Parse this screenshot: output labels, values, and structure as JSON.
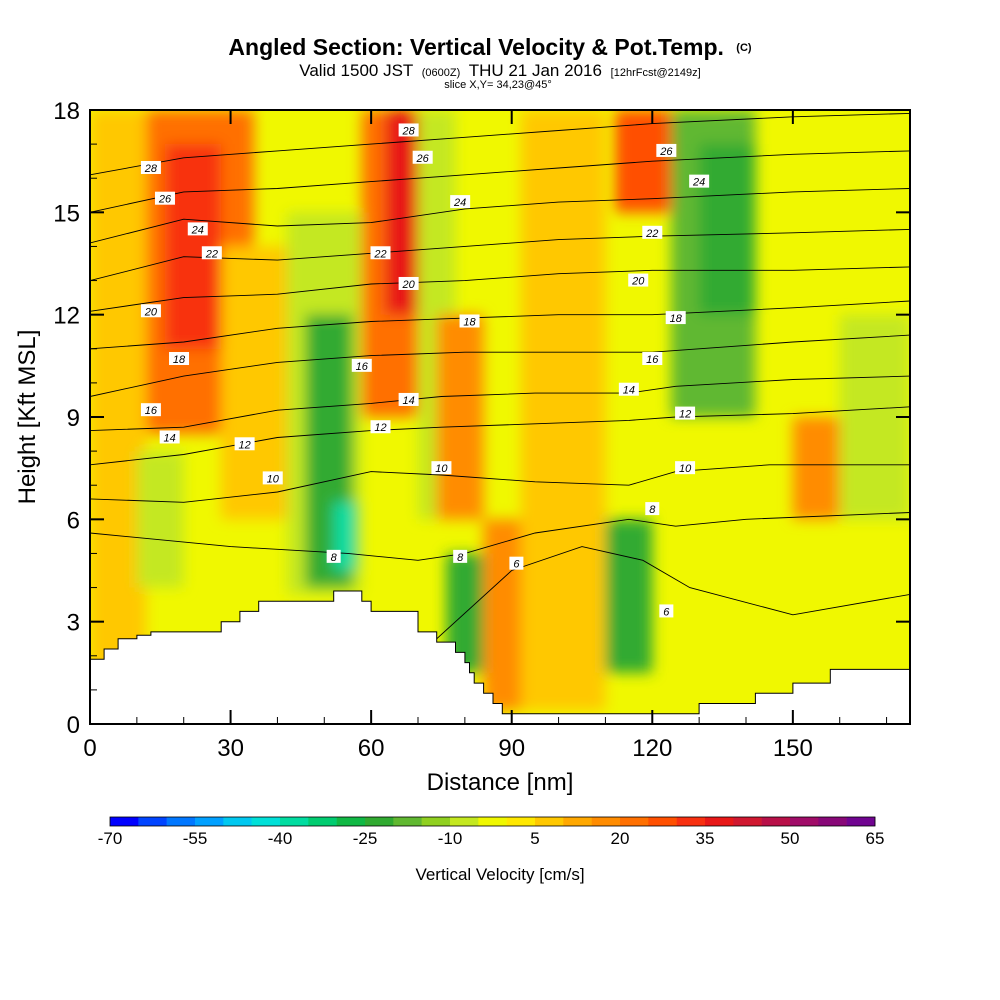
{
  "chart_data": {
    "type": "heatmap",
    "title": "Angled Section: Vertical Velocity & Pot.Temp.",
    "title_suffix": "(C)",
    "subtitle_parts": [
      "Valid 1500 JST",
      "(0600Z)",
      "THU 21 Jan 2016",
      "[12hrFcst@2149z]"
    ],
    "slice_label": "slice X,Y= 34,23@45°",
    "xlabel": "Distance [nm]",
    "ylabel": "Height [Kft MSL]",
    "xlim": [
      0,
      175
    ],
    "ylim": [
      0,
      18
    ],
    "x_ticks": [
      "0",
      "30",
      "60",
      "90",
      "120",
      "150"
    ],
    "x_tick_values": [
      0,
      30,
      60,
      90,
      120,
      150
    ],
    "y_ticks": [
      "0",
      "3",
      "6",
      "9",
      "12",
      "15",
      "18"
    ],
    "y_tick_values": [
      0,
      3,
      6,
      9,
      12,
      15,
      18
    ],
    "colorbar": {
      "title": "Vertical Velocity [cm/s]",
      "labels": [
        "-70",
        "-55",
        "-40",
        "-25",
        "-10",
        "5",
        "20",
        "35",
        "50",
        "65"
      ],
      "min": -70,
      "max": 65,
      "step": 5,
      "colors": [
        "#0000ff",
        "#0044ff",
        "#0077ff",
        "#00a0ff",
        "#00c8f0",
        "#00e0d8",
        "#00dca0",
        "#00cc70",
        "#10b844",
        "#30aa30",
        "#60b830",
        "#90d020",
        "#c4e820",
        "#f0f800",
        "#ffe800",
        "#ffc800",
        "#ffa800",
        "#ff8c00",
        "#ff7000",
        "#ff5000",
        "#f83010",
        "#e81818",
        "#d01830",
        "#b81048",
        "#a00c68",
        "#880878",
        "#700490"
      ]
    },
    "vertical_velocity_cells_cm_s": [
      {
        "x0": 0,
        "x1": 12,
        "y0": 0,
        "y1": 18,
        "v": 5
      },
      {
        "x0": 12,
        "x1": 35,
        "y0": 8.5,
        "y1": 18,
        "v": 18
      },
      {
        "x0": 16,
        "x1": 28,
        "y0": 11,
        "y1": 17,
        "v": 30
      },
      {
        "x0": 10,
        "x1": 20,
        "y0": 4,
        "y1": 8,
        "v": -8
      },
      {
        "x0": 28,
        "x1": 45,
        "y0": 6,
        "y1": 14,
        "v": 5
      },
      {
        "x0": 42,
        "x1": 58,
        "y0": 3.8,
        "y1": 15,
        "v": -12
      },
      {
        "x0": 46,
        "x1": 56,
        "y0": 4,
        "y1": 12,
        "v": -25
      },
      {
        "x0": 52,
        "x1": 57,
        "y0": 4.5,
        "y1": 6.5,
        "v": -40
      },
      {
        "x0": 58,
        "x1": 72,
        "y0": 9,
        "y1": 18,
        "v": 20
      },
      {
        "x0": 63,
        "x1": 70,
        "y0": 12,
        "y1": 18,
        "v": 35
      },
      {
        "x0": 70,
        "x1": 78,
        "y0": 6,
        "y1": 18,
        "v": -8
      },
      {
        "x0": 74,
        "x1": 84,
        "y0": 6,
        "y1": 12,
        "v": 15
      },
      {
        "x0": 76,
        "x1": 84,
        "y0": 1.5,
        "y1": 5,
        "v": -25
      },
      {
        "x0": 84,
        "x1": 92,
        "y0": 0.4,
        "y1": 6,
        "v": 15
      },
      {
        "x0": 92,
        "x1": 110,
        "y0": 0.4,
        "y1": 18,
        "v": 5
      },
      {
        "x0": 110,
        "x1": 120,
        "y0": 1.5,
        "y1": 6,
        "v": -25
      },
      {
        "x0": 112,
        "x1": 124,
        "y0": 15,
        "y1": 18,
        "v": 25
      },
      {
        "x0": 124,
        "x1": 142,
        "y0": 9,
        "y1": 18,
        "v": -18
      },
      {
        "x0": 130,
        "x1": 142,
        "y0": 12,
        "y1": 17,
        "v": -25
      },
      {
        "x0": 150,
        "x1": 160,
        "y0": 6,
        "y1": 9,
        "v": 15
      },
      {
        "x0": 160,
        "x1": 175,
        "y0": 6,
        "y1": 12,
        "v": -10
      }
    ],
    "theta_contours_C": [
      {
        "label": "6",
        "points": [
          [
            48,
            1.2
          ],
          [
            70,
            2.0
          ],
          [
            90,
            4.5
          ],
          [
            105,
            5.2
          ],
          [
            118,
            4.8
          ],
          [
            128,
            4.0
          ],
          [
            150,
            3.2
          ],
          [
            175,
            3.8
          ]
        ]
      },
      {
        "label": "8",
        "points": [
          [
            0,
            5.6
          ],
          [
            30,
            5.2
          ],
          [
            55,
            5.0
          ],
          [
            70,
            4.8
          ],
          [
            80,
            5.0
          ],
          [
            95,
            5.6
          ],
          [
            115,
            6.0
          ],
          [
            125,
            5.8
          ],
          [
            140,
            6.0
          ],
          [
            175,
            6.2
          ]
        ]
      },
      {
        "label": "10",
        "points": [
          [
            0,
            6.6
          ],
          [
            20,
            6.5
          ],
          [
            40,
            6.8
          ],
          [
            60,
            7.4
          ],
          [
            75,
            7.3
          ],
          [
            95,
            7.1
          ],
          [
            115,
            7.0
          ],
          [
            125,
            7.4
          ],
          [
            145,
            7.6
          ],
          [
            175,
            7.6
          ]
        ]
      },
      {
        "label": "12",
        "points": [
          [
            0,
            7.6
          ],
          [
            20,
            7.9
          ],
          [
            40,
            8.4
          ],
          [
            60,
            8.6
          ],
          [
            75,
            8.7
          ],
          [
            95,
            8.8
          ],
          [
            115,
            8.9
          ],
          [
            125,
            9.0
          ],
          [
            150,
            9.1
          ],
          [
            175,
            9.3
          ]
        ]
      },
      {
        "label": "14",
        "points": [
          [
            0,
            8.6
          ],
          [
            20,
            8.7
          ],
          [
            40,
            9.2
          ],
          [
            60,
            9.4
          ],
          [
            75,
            9.6
          ],
          [
            95,
            9.7
          ],
          [
            115,
            9.7
          ],
          [
            125,
            9.9
          ],
          [
            150,
            10.1
          ],
          [
            175,
            10.2
          ]
        ]
      },
      {
        "label": "16",
        "points": [
          [
            0,
            9.6
          ],
          [
            20,
            10.2
          ],
          [
            40,
            10.6
          ],
          [
            60,
            10.8
          ],
          [
            80,
            10.9
          ],
          [
            100,
            10.9
          ],
          [
            120,
            10.9
          ],
          [
            150,
            11.2
          ],
          [
            175,
            11.4
          ]
        ]
      },
      {
        "label": "18",
        "points": [
          [
            0,
            11.0
          ],
          [
            20,
            11.2
          ],
          [
            40,
            11.6
          ],
          [
            60,
            11.8
          ],
          [
            80,
            11.9
          ],
          [
            100,
            12.0
          ],
          [
            120,
            12.0
          ],
          [
            150,
            12.2
          ],
          [
            175,
            12.4
          ]
        ]
      },
      {
        "label": "20",
        "points": [
          [
            0,
            12.1
          ],
          [
            20,
            12.5
          ],
          [
            40,
            12.6
          ],
          [
            60,
            12.9
          ],
          [
            80,
            13.0
          ],
          [
            100,
            13.2
          ],
          [
            120,
            13.3
          ],
          [
            150,
            13.3
          ],
          [
            175,
            13.4
          ]
        ]
      },
      {
        "label": "22",
        "points": [
          [
            0,
            13.0
          ],
          [
            20,
            13.7
          ],
          [
            40,
            13.6
          ],
          [
            60,
            13.8
          ],
          [
            80,
            14.0
          ],
          [
            100,
            14.2
          ],
          [
            120,
            14.3
          ],
          [
            150,
            14.4
          ],
          [
            175,
            14.5
          ]
        ]
      },
      {
        "label": "24",
        "points": [
          [
            0,
            14.1
          ],
          [
            20,
            14.8
          ],
          [
            40,
            14.6
          ],
          [
            60,
            14.7
          ],
          [
            80,
            15.1
          ],
          [
            100,
            15.3
          ],
          [
            120,
            15.4
          ],
          [
            150,
            15.6
          ],
          [
            175,
            15.7
          ]
        ]
      },
      {
        "label": "26",
        "points": [
          [
            0,
            15.0
          ],
          [
            20,
            15.6
          ],
          [
            40,
            15.7
          ],
          [
            60,
            15.9
          ],
          [
            80,
            16.1
          ],
          [
            100,
            16.3
          ],
          [
            120,
            16.5
          ],
          [
            150,
            16.7
          ],
          [
            175,
            16.8
          ]
        ]
      },
      {
        "label": "28",
        "points": [
          [
            0,
            16.1
          ],
          [
            20,
            16.6
          ],
          [
            40,
            16.8
          ],
          [
            60,
            17.0
          ],
          [
            80,
            17.2
          ],
          [
            100,
            17.4
          ],
          [
            120,
            17.6
          ],
          [
            150,
            17.8
          ],
          [
            175,
            17.9
          ]
        ]
      }
    ],
    "contour_labels": [
      {
        "text": "28",
        "x": 13,
        "y": 16.3
      },
      {
        "text": "26",
        "x": 16,
        "y": 15.4
      },
      {
        "text": "24",
        "x": 23,
        "y": 14.5
      },
      {
        "text": "22",
        "x": 26,
        "y": 13.8
      },
      {
        "text": "20",
        "x": 13,
        "y": 12.1
      },
      {
        "text": "18",
        "x": 19,
        "y": 10.7
      },
      {
        "text": "16",
        "x": 13,
        "y": 9.2
      },
      {
        "text": "14",
        "x": 17,
        "y": 8.4
      },
      {
        "text": "12",
        "x": 33,
        "y": 8.2
      },
      {
        "text": "10",
        "x": 39,
        "y": 7.2
      },
      {
        "text": "8",
        "x": 52,
        "y": 4.9
      },
      {
        "text": "28",
        "x": 68,
        "y": 17.4
      },
      {
        "text": "26",
        "x": 71,
        "y": 16.6
      },
      {
        "text": "24",
        "x": 79,
        "y": 15.3
      },
      {
        "text": "22",
        "x": 62,
        "y": 13.8
      },
      {
        "text": "20",
        "x": 68,
        "y": 12.9
      },
      {
        "text": "18",
        "x": 81,
        "y": 11.8
      },
      {
        "text": "16",
        "x": 58,
        "y": 10.5
      },
      {
        "text": "14",
        "x": 68,
        "y": 9.5
      },
      {
        "text": "12",
        "x": 62,
        "y": 8.7
      },
      {
        "text": "10",
        "x": 75,
        "y": 7.5
      },
      {
        "text": "8",
        "x": 79,
        "y": 4.9
      },
      {
        "text": "6",
        "x": 91,
        "y": 4.7
      },
      {
        "text": "26",
        "x": 123,
        "y": 16.8
      },
      {
        "text": "24",
        "x": 130,
        "y": 15.9
      },
      {
        "text": "22",
        "x": 120,
        "y": 14.4
      },
      {
        "text": "20",
        "x": 117,
        "y": 13.0
      },
      {
        "text": "18",
        "x": 125,
        "y": 11.9
      },
      {
        "text": "16",
        "x": 120,
        "y": 10.7
      },
      {
        "text": "14",
        "x": 115,
        "y": 9.8
      },
      {
        "text": "12",
        "x": 127,
        "y": 9.1
      },
      {
        "text": "10",
        "x": 127,
        "y": 7.5
      },
      {
        "text": "8",
        "x": 120,
        "y": 6.3
      },
      {
        "text": "6",
        "x": 123,
        "y": 3.3
      }
    ],
    "terrain": [
      [
        0,
        1.9
      ],
      [
        3,
        1.9
      ],
      [
        3,
        2.2
      ],
      [
        6,
        2.2
      ],
      [
        6,
        2.5
      ],
      [
        10,
        2.5
      ],
      [
        10,
        2.6
      ],
      [
        13,
        2.6
      ],
      [
        13,
        2.7
      ],
      [
        28,
        2.7
      ],
      [
        28,
        3.0
      ],
      [
        32,
        3.0
      ],
      [
        32,
        3.3
      ],
      [
        36,
        3.3
      ],
      [
        36,
        3.6
      ],
      [
        52,
        3.6
      ],
      [
        52,
        3.9
      ],
      [
        58,
        3.9
      ],
      [
        58,
        3.6
      ],
      [
        60,
        3.6
      ],
      [
        60,
        3.3
      ],
      [
        70,
        3.3
      ],
      [
        70,
        2.7
      ],
      [
        74,
        2.7
      ],
      [
        74,
        2.4
      ],
      [
        78,
        2.4
      ],
      [
        78,
        2.1
      ],
      [
        80,
        2.1
      ],
      [
        80,
        1.8
      ],
      [
        81,
        1.8
      ],
      [
        81,
        1.5
      ],
      [
        82,
        1.5
      ],
      [
        82,
        1.2
      ],
      [
        84,
        1.2
      ],
      [
        84,
        0.9
      ],
      [
        86,
        0.9
      ],
      [
        86,
        0.6
      ],
      [
        88,
        0.6
      ],
      [
        88,
        0.3
      ],
      [
        130,
        0.3
      ],
      [
        130,
        0.6
      ],
      [
        142,
        0.6
      ],
      [
        142,
        0.9
      ],
      [
        150,
        0.9
      ],
      [
        150,
        1.2
      ],
      [
        158,
        1.2
      ],
      [
        158,
        1.6
      ],
      [
        175,
        1.6
      ]
    ]
  }
}
